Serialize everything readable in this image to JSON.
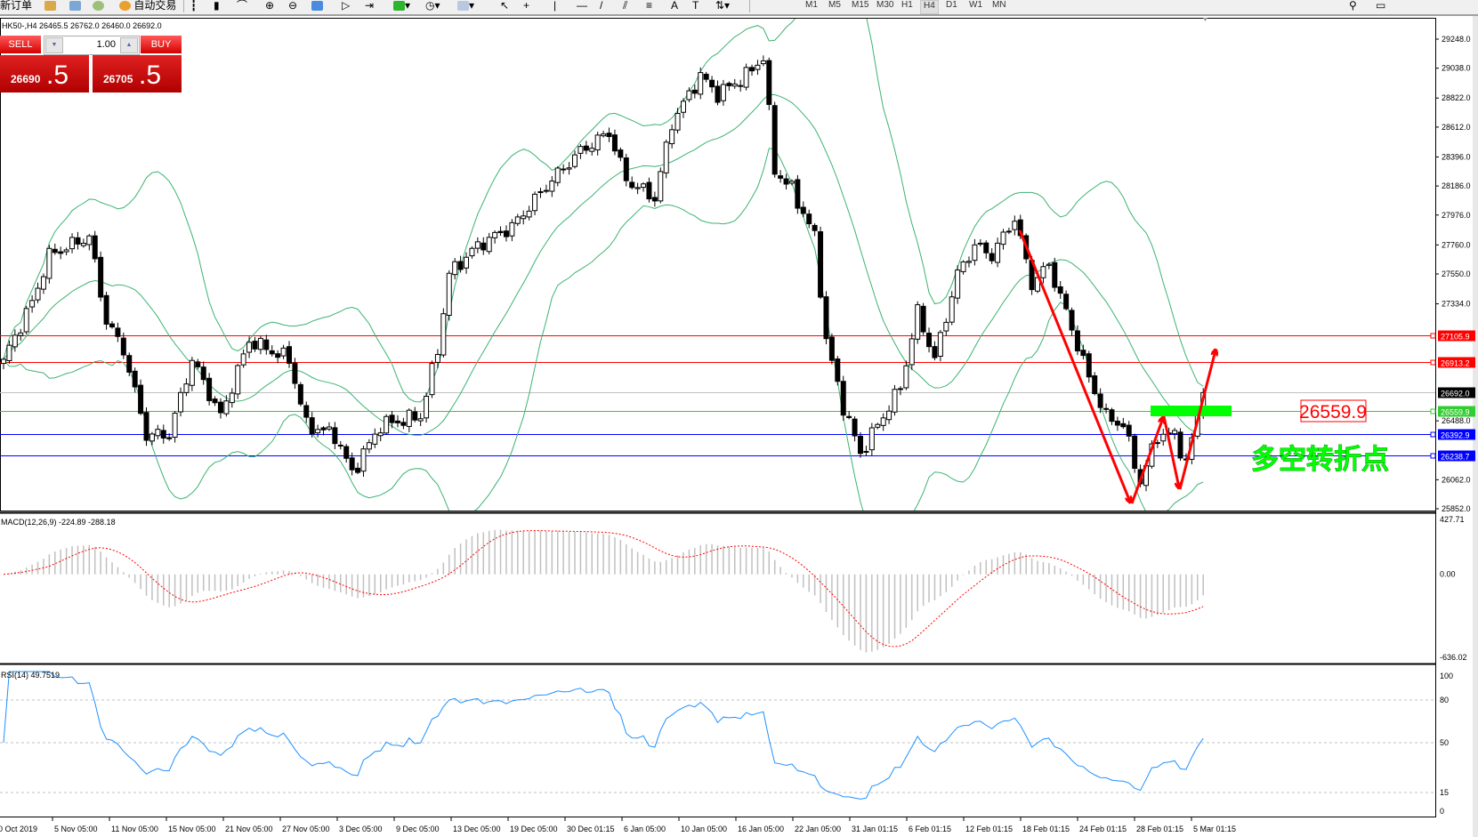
{
  "toolbar": {
    "new_order": "新订单",
    "auto_trading": "自动交易",
    "timeframes": [
      "M1",
      "M5",
      "M15",
      "M30",
      "H1",
      "H4",
      "D1",
      "W1",
      "MN"
    ],
    "active_timeframe": "H4"
  },
  "chart_header": "HK50-,H4  26465.5 26762.0 26460.0 26692.0",
  "trade_panel": {
    "sell_label": "SELL",
    "buy_label": "BUY",
    "volume": "1.00",
    "sell_price_main": "26690",
    "sell_price_big": ".5",
    "buy_price_main": "26705",
    "buy_price_big": ".5"
  },
  "colors": {
    "bull": "#ffffff",
    "bear": "#000000",
    "bands": "#3cb371",
    "macd_hist": "#c0c0c0",
    "macd_signal": "#ff0000",
    "rsi": "#1e90ff",
    "resistance": "#ff0000",
    "support": "#0000ff",
    "pivot": "#32cd32",
    "annotation_green": "#00ff00"
  },
  "chart_data": {
    "type": "candlestick",
    "symbol": "HK50-",
    "timeframe": "H4",
    "indicators": [
      "Bollinger Bands",
      "MACD(12,26,9)",
      "RSI(14)"
    ],
    "price_path": [
      [
        0,
        26933
      ],
      [
        5,
        27344
      ],
      [
        8,
        27685
      ],
      [
        15,
        27820
      ],
      [
        18,
        27210
      ],
      [
        21,
        27004
      ],
      [
        25,
        26386
      ],
      [
        29,
        26386
      ],
      [
        33,
        26933
      ],
      [
        38,
        26521
      ],
      [
        43,
        27068
      ],
      [
        50,
        26933
      ],
      [
        53,
        26457
      ],
      [
        58,
        26386
      ],
      [
        61,
        26110
      ],
      [
        66,
        26457
      ],
      [
        73,
        26521
      ],
      [
        76,
        27004
      ],
      [
        78,
        27550
      ],
      [
        83,
        27756
      ],
      [
        89,
        27891
      ],
      [
        96,
        28232
      ],
      [
        101,
        28438
      ],
      [
        106,
        28573
      ],
      [
        109,
        28232
      ],
      [
        114,
        28097
      ],
      [
        117,
        28643
      ],
      [
        122,
        28984
      ],
      [
        125,
        28849
      ],
      [
        130,
        28984
      ],
      [
        133,
        29119
      ],
      [
        135,
        28303
      ],
      [
        138,
        28161
      ],
      [
        142,
        27820
      ],
      [
        144,
        27068
      ],
      [
        147,
        26592
      ],
      [
        150,
        26251
      ],
      [
        153,
        26457
      ],
      [
        157,
        26727
      ],
      [
        160,
        27274
      ],
      [
        163,
        26933
      ],
      [
        167,
        27550
      ],
      [
        170,
        27756
      ],
      [
        173,
        27685
      ],
      [
        177,
        27955
      ],
      [
        180,
        27480
      ],
      [
        183,
        27615
      ],
      [
        186,
        27274
      ],
      [
        190,
        26798
      ],
      [
        193,
        26521
      ],
      [
        196,
        26457
      ],
      [
        199,
        26045
      ],
      [
        202,
        26386
      ],
      [
        205,
        26386
      ],
      [
        207,
        26180
      ],
      [
        210,
        26692
      ]
    ],
    "price_axis": [
      "29248.0",
      "29038.0",
      "28822.0",
      "28612.0",
      "28396.0",
      "28186.0",
      "27976.0",
      "27760.0",
      "27550.0",
      "27334.0",
      "26488.0",
      "26062.0",
      "25852.0"
    ],
    "price_range": [
      25852,
      29248
    ],
    "levels": [
      {
        "value": "27105.9",
        "kind": "resistance"
      },
      {
        "value": "26913.2",
        "kind": "resistance"
      },
      {
        "value": "26692.0",
        "kind": "current"
      },
      {
        "value": "26559.9",
        "kind": "pivot"
      },
      {
        "value": "26392.9",
        "kind": "support"
      },
      {
        "value": "26238.7",
        "kind": "support"
      }
    ],
    "time_axis": [
      "0 Oct 2019",
      "5 Nov 05:00",
      "11 Nov 05:00",
      "15 Nov 05:00",
      "21 Nov 05:00",
      "27 Nov 05:00",
      "3 Dec 05:00",
      "9 Dec 05:00",
      "13 Dec 05:00",
      "19 Dec 05:00",
      "30 Dec 01:15",
      "6 Jan 05:00",
      "10 Jan 05:00",
      "16 Jan 05:00",
      "22 Jan 05:00",
      "31 Jan 01:15",
      "6 Feb 01:15",
      "12 Feb 01:15",
      "18 Feb 01:15",
      "24 Feb 01:15",
      "28 Feb 01:15",
      "5 Mar 01:15"
    ],
    "macd": {
      "label": "MACD(12,26,9) -224.89 -288.18",
      "axis": [
        "427.71",
        "0.00",
        "-636.02"
      ],
      "range": [
        -636.02,
        427.71
      ]
    },
    "rsi": {
      "label": "RSI(14) 49.7519",
      "axis": [
        "100",
        "80",
        "50",
        "15",
        "0"
      ],
      "levels": [
        80,
        50,
        15
      ]
    }
  },
  "annotations": {
    "pivot_label": "26559.9",
    "pivot_text": "多空转折点"
  }
}
